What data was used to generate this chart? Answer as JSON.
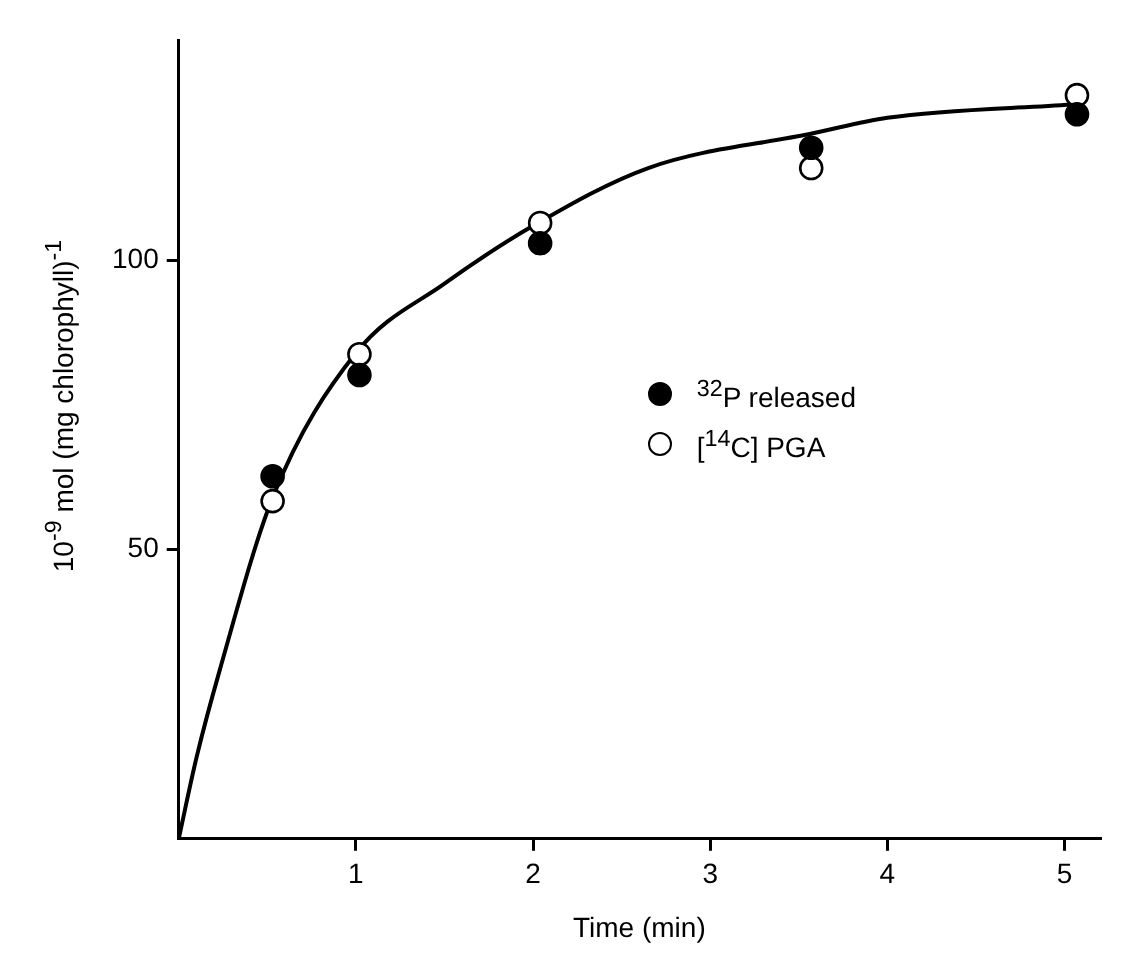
{
  "chart_data": {
    "type": "scatter",
    "xlabel": "Time (min)",
    "ylabel": "10$^{-9}$ mol (mg chlorophyll)$^{-1}$",
    "xlim": [
      0,
      5.2
    ],
    "xticks": [
      1,
      2,
      3,
      4,
      5
    ],
    "ylim": [
      0,
      138
    ],
    "yticks": [
      50,
      100
    ],
    "grid": false,
    "legend": "right",
    "marker": "circle",
    "series": [
      {
        "name": "$^{32}$P released",
        "type": "scatter",
        "color": "#000000",
        "x": [
          0.53,
          1.02,
          2.04,
          3.57,
          5.07
        ],
        "values": [
          62.7,
          80.2,
          103,
          119.5,
          125.3
        ]
      },
      {
        "name": "[$^{14}$C] PGA",
        "type": "scatter",
        "color": "#ffffff",
        "x": [
          0.53,
          1.02,
          2.04,
          3.57,
          5.07
        ],
        "values": [
          58.4,
          83.8,
          106.5,
          116,
          128.6
        ]
      },
      {
        "type": "line",
        "color": "#000000",
        "marker": "none",
        "x": [
          0,
          0.1,
          0.23,
          0.53,
          1,
          1.5,
          2,
          2.65,
          3.58,
          4,
          5.04
        ],
        "values": [
          0,
          14,
          29,
          59,
          84,
          96,
          106,
          116,
          122,
          124.7,
          127
        ]
      }
    ]
  }
}
